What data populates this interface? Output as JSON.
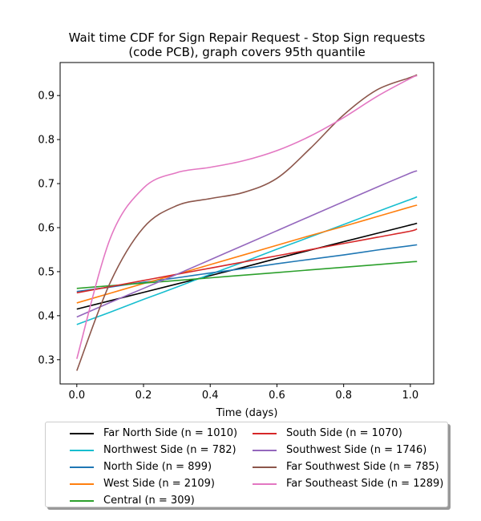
{
  "chart_data": {
    "type": "line",
    "title_line1": "Wait time CDF for Sign Repair Request - Stop Sign  requests",
    "title_line2": "(code PCB), graph covers 95th quantile",
    "xlabel": "Time (days)",
    "ylabel": "",
    "xlim": [
      -0.05,
      1.07
    ],
    "ylim": [
      0.245,
      0.975
    ],
    "x_ticks": [
      "0.0",
      "0.2",
      "0.4",
      "0.6",
      "0.8",
      "1.0"
    ],
    "y_ticks": [
      "0.3",
      "0.4",
      "0.5",
      "0.6",
      "0.7",
      "0.8",
      "0.9"
    ],
    "x": [
      0.0,
      0.1,
      0.2,
      0.3,
      0.4,
      0.5,
      0.6,
      0.7,
      0.8,
      0.9,
      1.0,
      1.02
    ],
    "series": [
      {
        "name": "Far North Side (n = 1010)",
        "color": "#000000",
        "values": [
          0.415,
          0.434,
          0.453,
          0.472,
          0.491,
          0.51,
          0.53,
          0.549,
          0.568,
          0.587,
          0.606,
          0.61
        ]
      },
      {
        "name": "Northwest Side (n = 782)",
        "color": "#17becf",
        "values": [
          0.38,
          0.408,
          0.437,
          0.465,
          0.494,
          0.522,
          0.551,
          0.579,
          0.607,
          0.636,
          0.664,
          0.67
        ]
      },
      {
        "name": "North Side (n = 899)",
        "color": "#1f77b4",
        "values": [
          0.455,
          0.465,
          0.476,
          0.486,
          0.497,
          0.507,
          0.518,
          0.528,
          0.538,
          0.549,
          0.559,
          0.561
        ]
      },
      {
        "name": "West Side (n = 2109)",
        "color": "#ff7f0e",
        "values": [
          0.429,
          0.451,
          0.473,
          0.494,
          0.516,
          0.538,
          0.56,
          0.582,
          0.603,
          0.625,
          0.647,
          0.651
        ]
      },
      {
        "name": "Central (n = 309)",
        "color": "#2ca02c",
        "values": [
          0.462,
          0.468,
          0.474,
          0.48,
          0.486,
          0.492,
          0.498,
          0.504,
          0.51,
          0.516,
          0.522,
          0.523
        ]
      },
      {
        "name": "South Side (n = 1070)",
        "color": "#d62728",
        "values": [
          0.452,
          0.466,
          0.48,
          0.494,
          0.508,
          0.522,
          0.536,
          0.55,
          0.564,
          0.578,
          0.592,
          0.597
        ]
      },
      {
        "name": "Southwest Side (n = 1746)",
        "color": "#9467bd",
        "values": [
          0.397,
          0.43,
          0.462,
          0.494,
          0.527,
          0.56,
          0.593,
          0.626,
          0.659,
          0.692,
          0.724,
          0.729
        ]
      },
      {
        "name": "Far Southwest Side (n = 785)",
        "color": "#8c564b",
        "values": [
          0.275,
          0.475,
          0.6,
          0.65,
          0.666,
          0.68,
          0.712,
          0.78,
          0.856,
          0.913,
          0.941,
          0.947
        ]
      },
      {
        "name": "Far Southeast Side (n = 1289)",
        "color": "#e377c2",
        "values": [
          0.302,
          0.575,
          0.69,
          0.725,
          0.737,
          0.752,
          0.775,
          0.808,
          0.85,
          0.898,
          0.939,
          0.945
        ]
      }
    ]
  }
}
